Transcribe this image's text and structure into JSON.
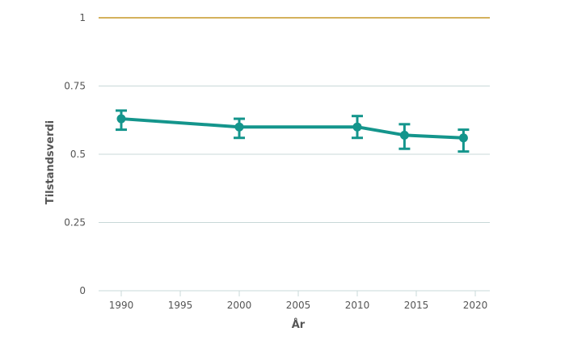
{
  "chart_data": {
    "type": "line",
    "title": "",
    "xlabel": "År",
    "ylabel": "Tilstandsverdi",
    "xlim": [
      1990,
      2020
    ],
    "ylim": [
      0,
      1
    ],
    "x_ticks": [
      "1990",
      "1995",
      "2000",
      "2005",
      "2010",
      "2015",
      "2020"
    ],
    "y_ticks": [
      "0",
      "0.25",
      "0.5",
      "0.75",
      "1"
    ],
    "grid": "horizontal",
    "reference_line": {
      "y": 1,
      "color": "#d4b15c"
    },
    "series": [
      {
        "color": "#14958c",
        "points": [
          {
            "x": 1990,
            "y": 0.63,
            "low": 0.59,
            "high": 0.66
          },
          {
            "x": 2000,
            "y": 0.6,
            "low": 0.56,
            "high": 0.63
          },
          {
            "x": 2010,
            "y": 0.6,
            "low": 0.56,
            "high": 0.64
          },
          {
            "x": 2014,
            "y": 0.57,
            "low": 0.52,
            "high": 0.61
          },
          {
            "x": 2019,
            "y": 0.56,
            "low": 0.51,
            "high": 0.59
          }
        ]
      }
    ],
    "colors": {
      "grid": "#c8d8d8",
      "axis": "#c8d8d8",
      "text": "#555555"
    }
  }
}
